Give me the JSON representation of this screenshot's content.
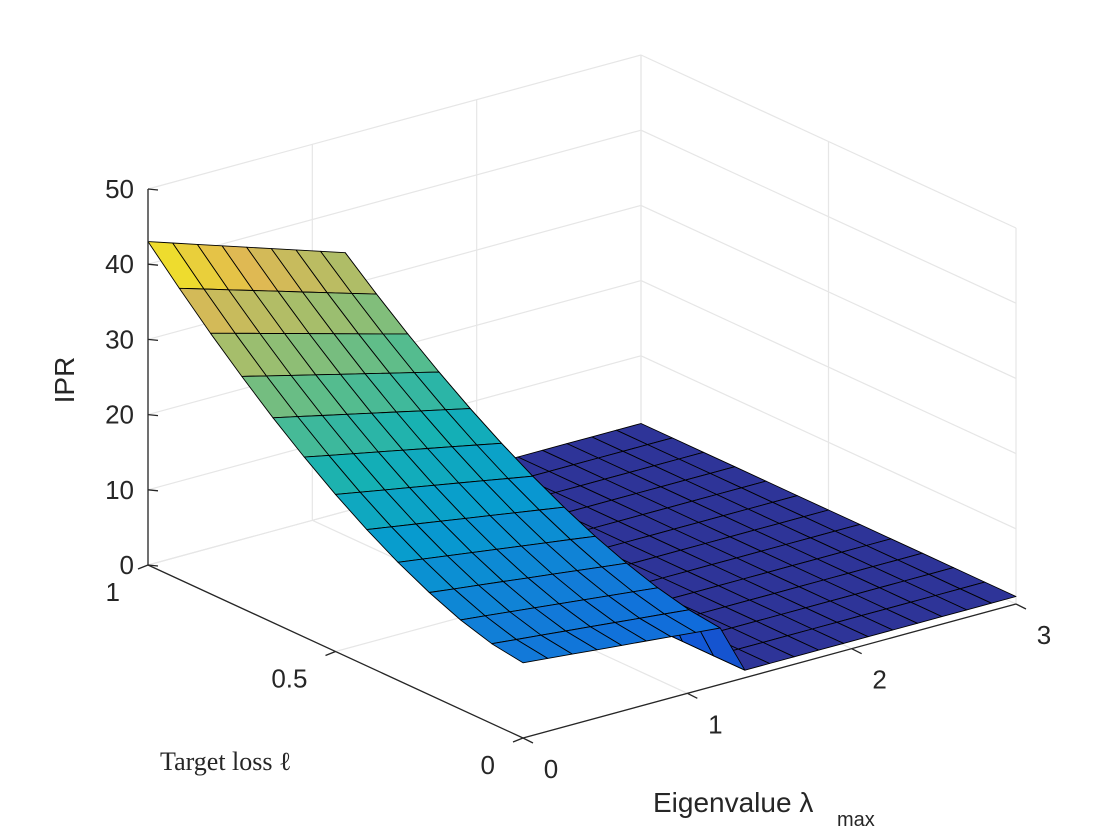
{
  "chart_data": {
    "type": "surface3d",
    "title": "",
    "xlabel": "Eigenvalue λ",
    "xlabel_sub": "max",
    "ylabel": "Target loss ℓ",
    "zlabel": "IPR",
    "xlim": [
      0,
      3
    ],
    "ylim": [
      0,
      1
    ],
    "zlim": [
      0,
      50
    ],
    "x_ticks": [
      "0",
      "1",
      "2",
      "3"
    ],
    "y_ticks": [
      "0",
      "0.5",
      "1"
    ],
    "z_ticks": [
      "0",
      "10",
      "20",
      "30",
      "40",
      "50"
    ],
    "grid": true,
    "colormap": "parula",
    "x_cells": 20,
    "y_cells": 12,
    "description_values": {
      "left_edge_ipr_at_loss_1": 43,
      "left_edge_ipr_at_loss_0": 10,
      "plateau_ipr": 1,
      "transition_lambda": 1.2
    }
  },
  "colors": {
    "axis": "#262626",
    "grid": "#e6e6e6",
    "edge": "#000000"
  }
}
